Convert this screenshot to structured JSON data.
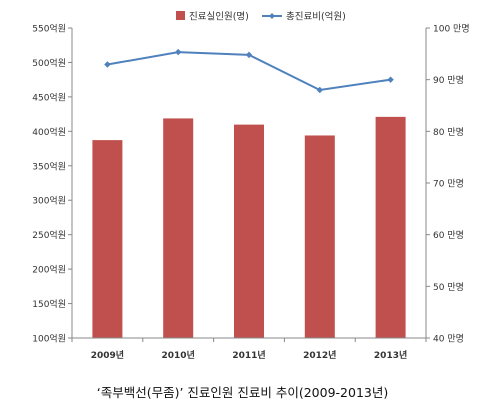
{
  "caption": "‘족부백선(무좀)’ 진료인원 진료비 추이(2009-2013년)",
  "chart_data": {
    "type": "bar",
    "categories": [
      "2009년",
      "2010년",
      "2011년",
      "2012년",
      "2013년"
    ],
    "series": [
      {
        "name": "진료실인원(명)",
        "type": "bar",
        "axis": "right",
        "color": "#c0504d",
        "values": [
          78.3,
          82.5,
          81.3,
          79.2,
          82.8
        ]
      },
      {
        "name": "총진료비(억원)",
        "type": "line",
        "axis": "left",
        "color": "#4f81bd",
        "values": [
          497,
          515,
          511,
          460,
          475
        ]
      }
    ],
    "y_left": {
      "ylim": [
        100,
        550
      ],
      "ticks": [
        100,
        150,
        200,
        250,
        300,
        350,
        400,
        450,
        500,
        550
      ],
      "tick_labels": [
        "100억원",
        "150억원",
        "200억원",
        "250억원",
        "300억원",
        "350억원",
        "400억원",
        "450억원",
        "500억원",
        "550억원"
      ]
    },
    "y_right": {
      "ylim": [
        40,
        100
      ],
      "ticks": [
        40,
        50,
        60,
        70,
        80,
        90,
        100
      ],
      "tick_labels": [
        "40 만명",
        "50 만명",
        "60 만명",
        "70 만명",
        "80 만명",
        "90 만명",
        "100 만명"
      ]
    },
    "legend": "top-center",
    "grid": false
  }
}
